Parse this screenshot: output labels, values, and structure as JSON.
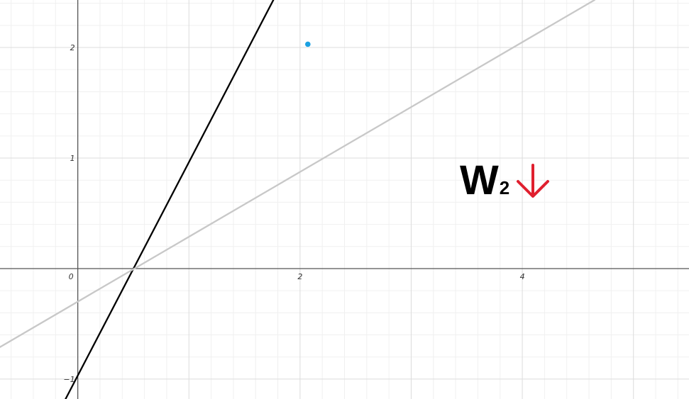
{
  "chart_data": {
    "type": "line",
    "title": "",
    "xlabel": "",
    "ylabel": "",
    "xlim": [
      -0.7,
      5.5
    ],
    "ylim": [
      -1.18,
      2.43
    ],
    "grid": true,
    "x_ticks": [
      {
        "value": 0,
        "label": "0"
      },
      {
        "value": 2,
        "label": "2"
      },
      {
        "value": 4,
        "label": "4"
      }
    ],
    "y_ticks": [
      {
        "value": -1,
        "label": "−1"
      },
      {
        "value": 1,
        "label": "1"
      },
      {
        "value": 2,
        "label": "2"
      }
    ],
    "series": [
      {
        "color": "#000000",
        "x": [
          -0.11,
          1.76
        ],
        "y": [
          -1.18,
          2.43
        ]
      },
      {
        "color": "#c8c8c8",
        "x": [
          -0.7,
          4.65
        ],
        "y": [
          -0.71,
          2.43
        ]
      }
    ],
    "points": [
      {
        "x": 2.07,
        "y": 2.03,
        "color": "#1ba1e2"
      }
    ]
  },
  "annotation": {
    "letter": "W",
    "subscript": "2",
    "arrow_color": "#e0202f",
    "arrow_direction": "down"
  }
}
